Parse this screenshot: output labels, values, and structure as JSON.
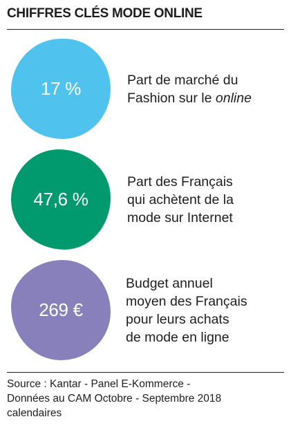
{
  "title": "CHIFFRES CLÉS MODE ONLINE",
  "colors": {
    "blue": "#4fc3ee",
    "green": "#009a6e",
    "purple": "#8780bb"
  },
  "chart_data": {
    "type": "table",
    "title": "CHIFFRES CLÉS MODE ONLINE",
    "items": [
      {
        "value": "17 %",
        "label_lines": [
          "Part de marché du",
          "Fashion sur le online"
        ],
        "color": "#4fc3ee"
      },
      {
        "value": "47,6 %",
        "label_lines": [
          "Part des Français",
          "qui achètent de la",
          "mode sur Internet"
        ],
        "color": "#009a6e"
      },
      {
        "value": "269 €",
        "label_lines": [
          "Budget annuel",
          "moyen des Français",
          "pour leurs achats",
          "de mode en ligne"
        ],
        "color": "#8780bb"
      }
    ]
  },
  "source": {
    "lines": [
      "Source : Kantar - Panel E-Kommerce  -",
      "Données au CAM Octobre - Septembre 2018",
      "calendaires"
    ]
  }
}
